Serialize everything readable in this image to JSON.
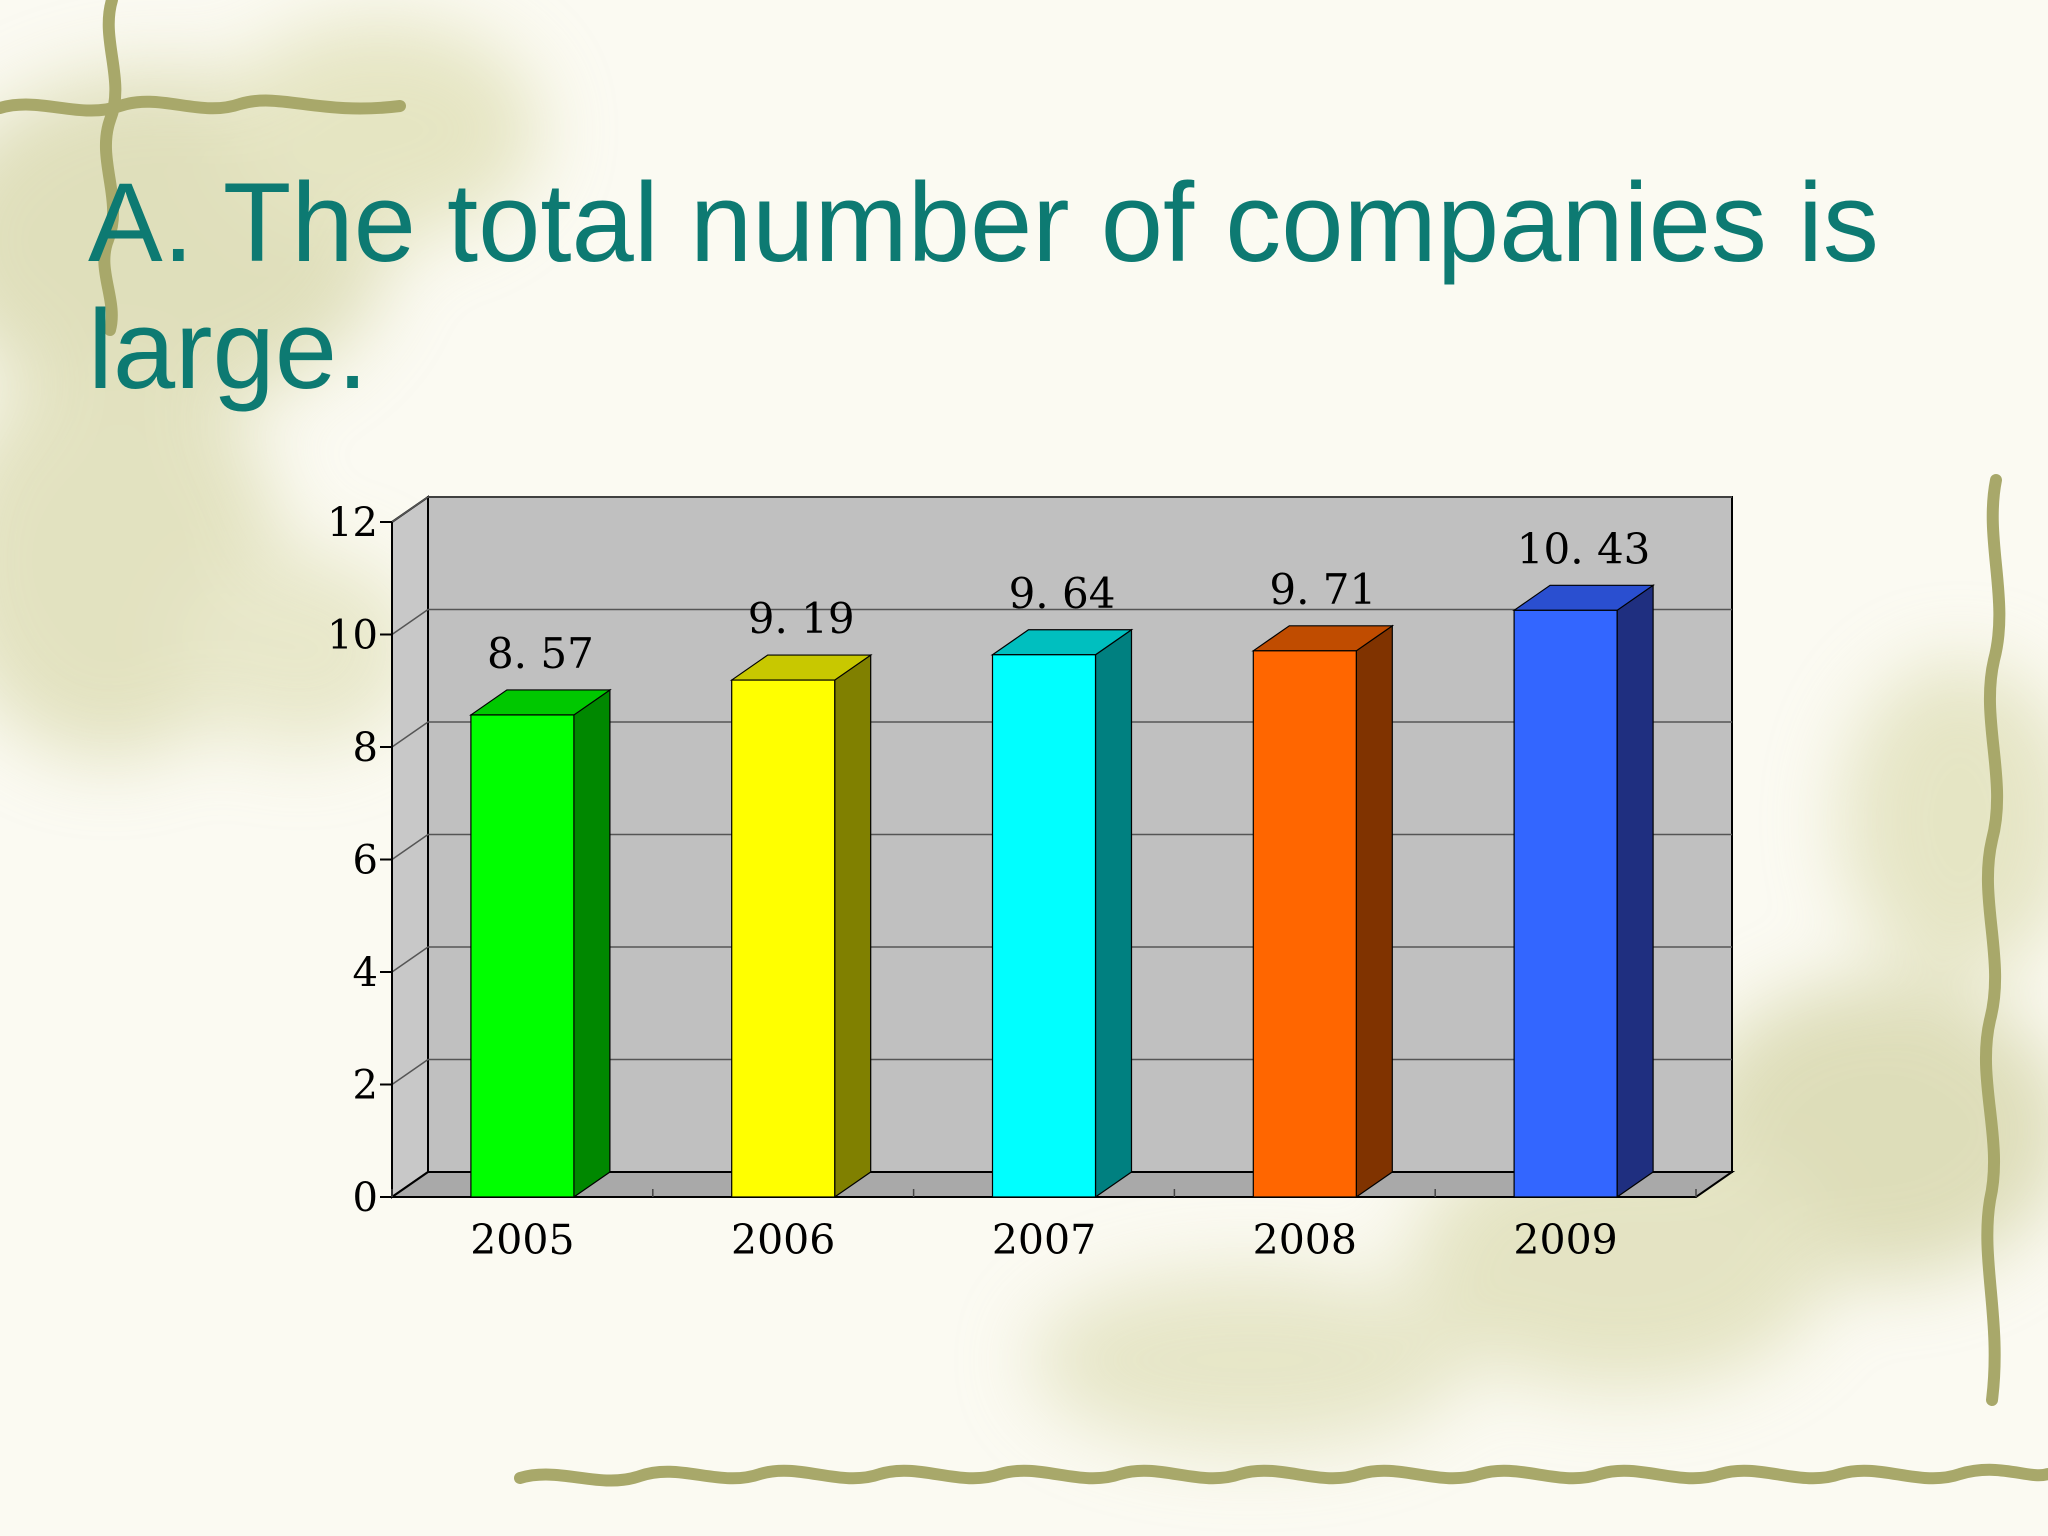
{
  "slide": {
    "title": "A. The total number of companies is large."
  },
  "colors": {
    "title": "#0d7a72",
    "plot_wall": "#c0c0c0",
    "vine": "#a8a86a"
  },
  "chart_data": {
    "type": "bar",
    "title": "",
    "xlabel": "",
    "ylabel": "",
    "categories": [
      "2005",
      "2006",
      "2007",
      "2008",
      "2009"
    ],
    "values": [
      8.57,
      9.19,
      9.64,
      9.71,
      10.43
    ],
    "value_labels": [
      "8. 57",
      "9. 19",
      "9. 64",
      "9. 71",
      "10. 43"
    ],
    "ylim": [
      0,
      12
    ],
    "yticks": [
      "0",
      "2",
      "4",
      "6",
      "8",
      "10",
      "12"
    ],
    "grid": true,
    "legend": "none",
    "style": "3d-columns",
    "bar_colors": [
      {
        "front": "#00ff00",
        "side": "#008800",
        "top": "#00c800"
      },
      {
        "front": "#ffff00",
        "side": "#808000",
        "top": "#c8c800"
      },
      {
        "front": "#00ffff",
        "side": "#008080",
        "top": "#00bfbf"
      },
      {
        "front": "#ff6600",
        "side": "#803300",
        "top": "#c04c00"
      },
      {
        "front": "#3366ff",
        "side": "#1f2f80",
        "top": "#2a4fd0"
      }
    ]
  }
}
